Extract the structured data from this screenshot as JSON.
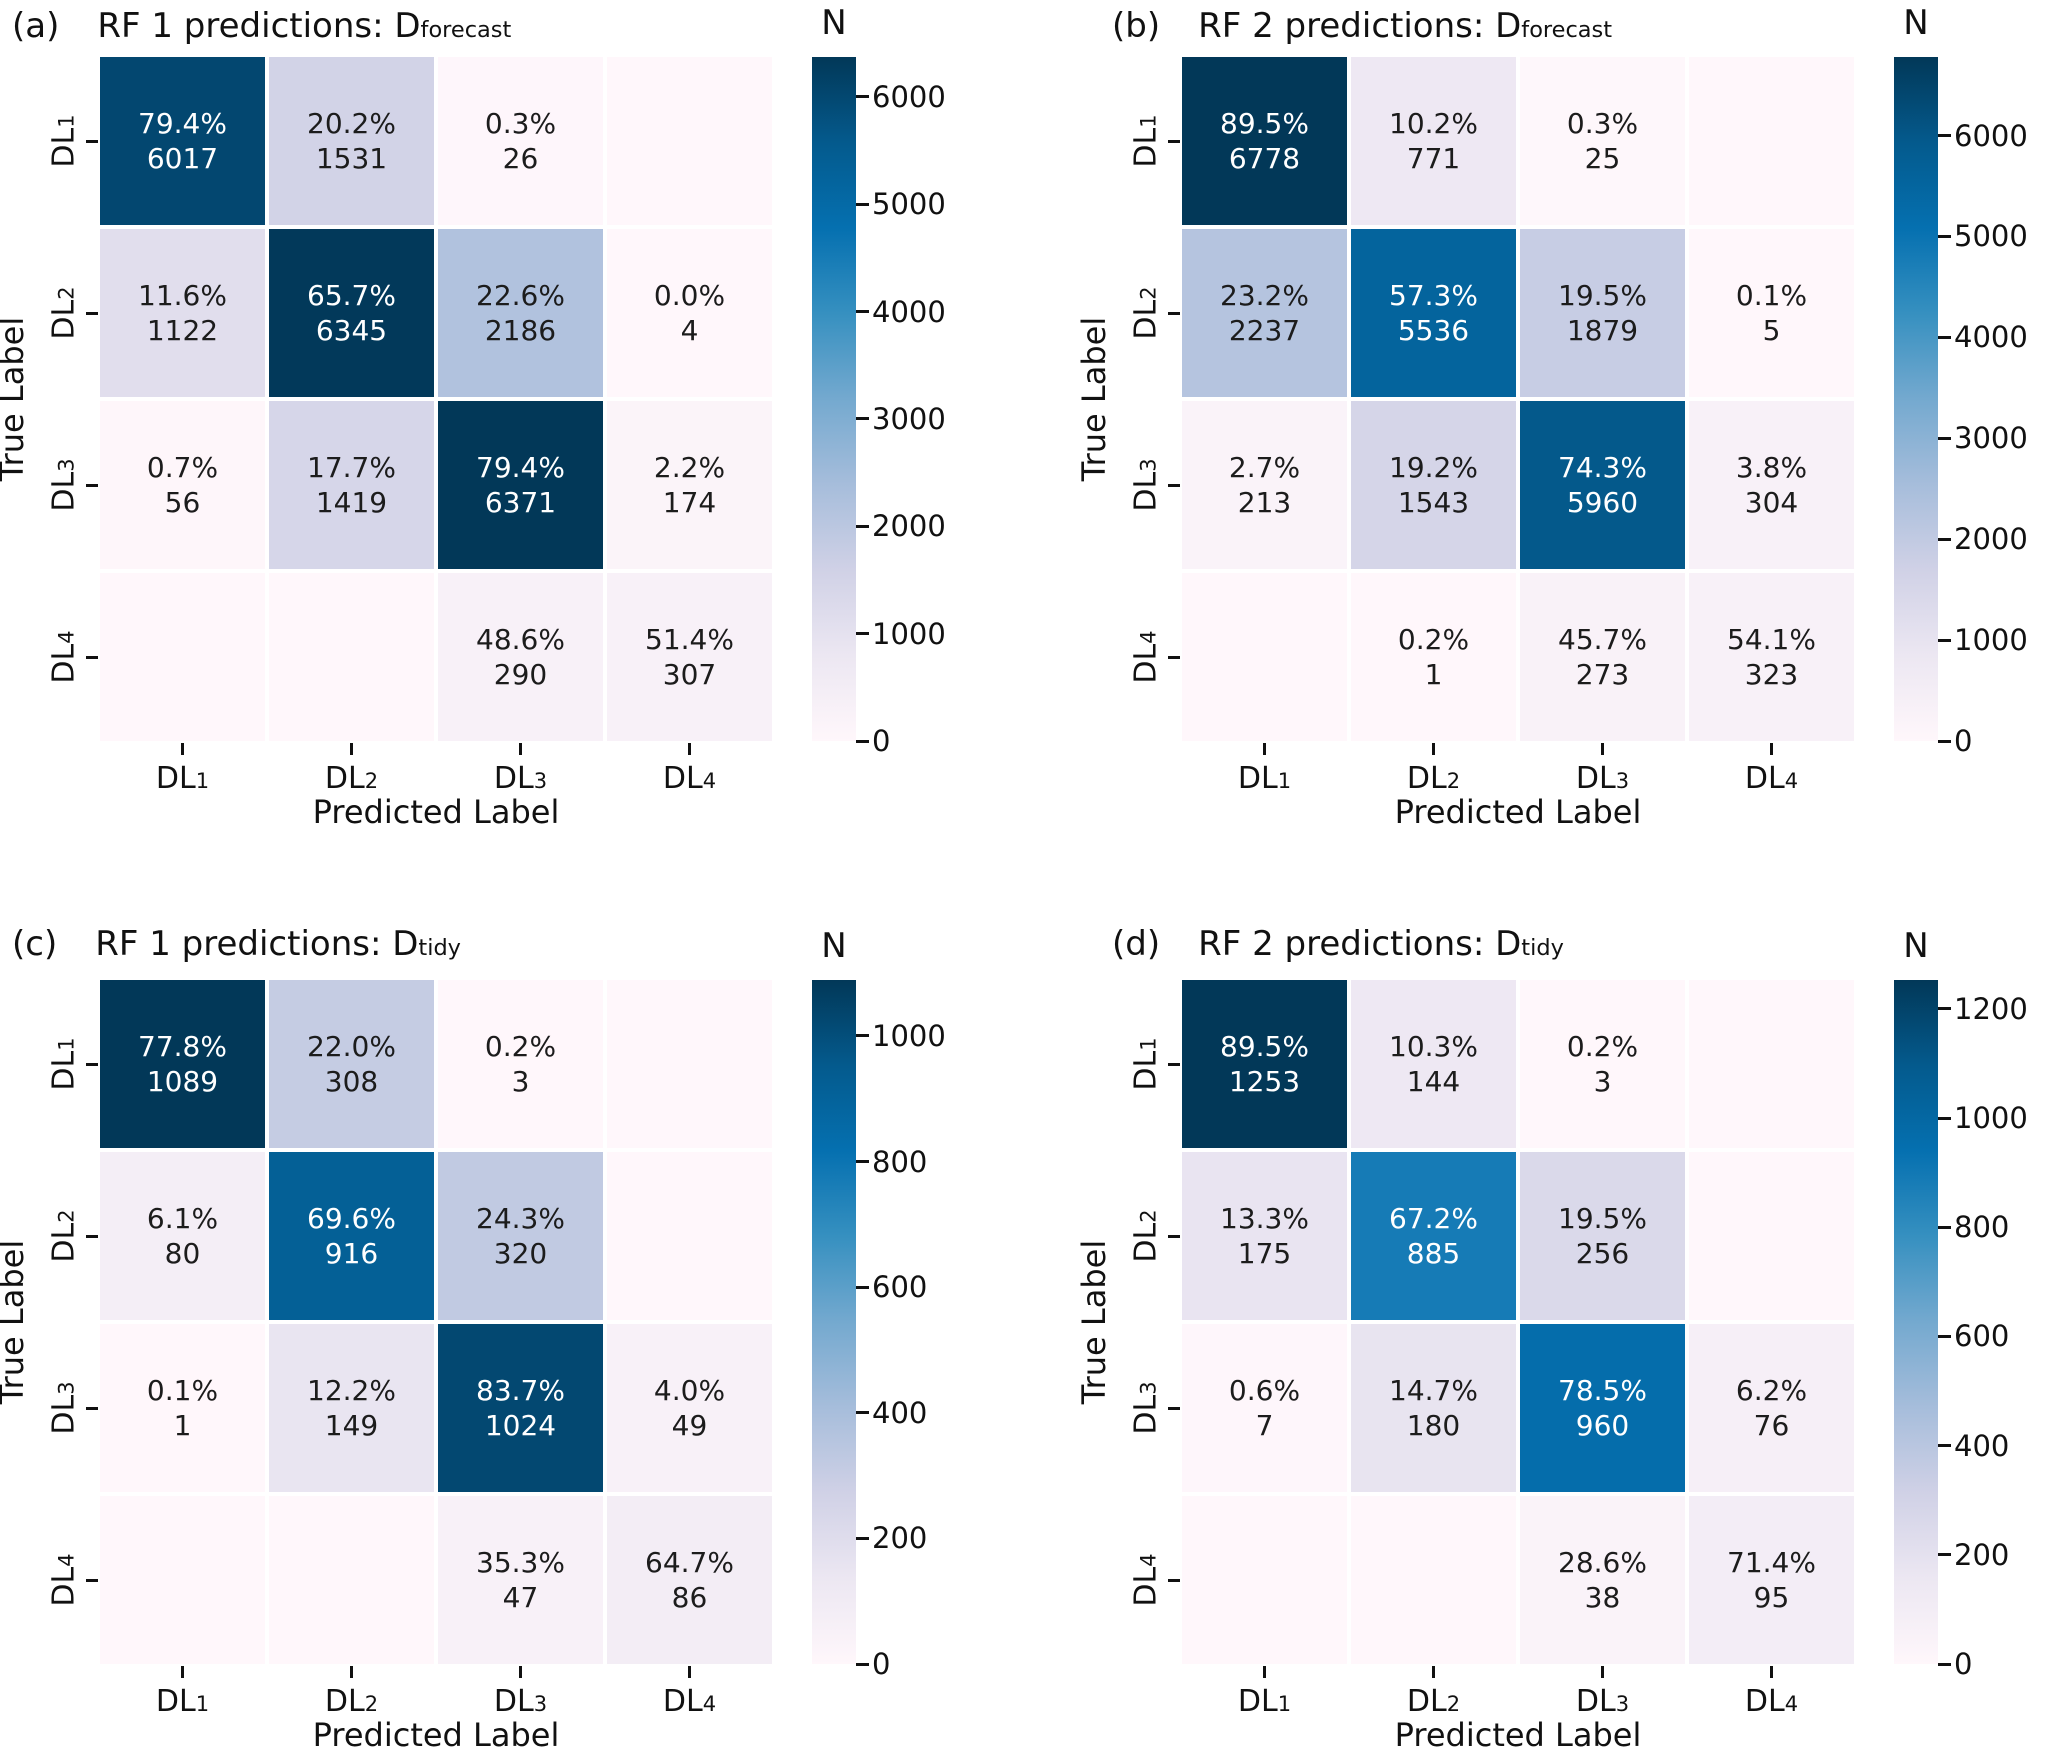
{
  "style": {
    "colormap_stops": [
      "#fff7fb",
      "#ece7f2",
      "#d0d1e6",
      "#a6bddb",
      "#74a9cf",
      "#3690c0",
      "#0570b0",
      "#045a8d",
      "#023858"
    ],
    "cell_text_dark": "#1c1c1c",
    "cell_text_light": "#ffffff",
    "axis_color": "#111111"
  },
  "chart_data": [
    {
      "type": "heatmap",
      "panel_tag": "(a)",
      "title_prefix": "RF 1 predictions: D",
      "title_subscript": "forecast",
      "xlabel": "Predicted Label",
      "ylabel": "True Label",
      "colorbar_label": "N",
      "x_categories": [
        "DL1",
        "DL2",
        "DL3",
        "DL4"
      ],
      "y_categories": [
        "DL1",
        "DL2",
        "DL3",
        "DL4"
      ],
      "vmin": 0,
      "vmax": 6371,
      "colorbar_ticks": [
        0,
        1000,
        2000,
        3000,
        4000,
        5000,
        6000
      ],
      "counts": [
        [
          6017,
          1531,
          26,
          null
        ],
        [
          1122,
          6345,
          2186,
          4
        ],
        [
          56,
          1419,
          6371,
          174
        ],
        [
          null,
          null,
          290,
          307
        ]
      ],
      "percents": [
        [
          "79.4%",
          "20.2%",
          "0.3%",
          null
        ],
        [
          "11.6%",
          "65.7%",
          "22.6%",
          "0.0%"
        ],
        [
          "0.7%",
          "17.7%",
          "79.4%",
          "2.2%"
        ],
        [
          null,
          null,
          "48.6%",
          "51.4%"
        ]
      ]
    },
    {
      "type": "heatmap",
      "panel_tag": "(b)",
      "title_prefix": "RF 2 predictions: D",
      "title_subscript": "forecast",
      "xlabel": "Predicted Label",
      "ylabel": "True Label",
      "colorbar_label": "N",
      "x_categories": [
        "DL1",
        "DL2",
        "DL3",
        "DL4"
      ],
      "y_categories": [
        "DL1",
        "DL2",
        "DL3",
        "DL4"
      ],
      "vmin": 0,
      "vmax": 6778,
      "colorbar_ticks": [
        0,
        1000,
        2000,
        3000,
        4000,
        5000,
        6000
      ],
      "counts": [
        [
          6778,
          771,
          25,
          null
        ],
        [
          2237,
          5536,
          1879,
          5
        ],
        [
          213,
          1543,
          5960,
          304
        ],
        [
          null,
          1,
          273,
          323
        ]
      ],
      "percents": [
        [
          "89.5%",
          "10.2%",
          "0.3%",
          null
        ],
        [
          "23.2%",
          "57.3%",
          "19.5%",
          "0.1%"
        ],
        [
          "2.7%",
          "19.2%",
          "74.3%",
          "3.8%"
        ],
        [
          null,
          "0.2%",
          "45.7%",
          "54.1%"
        ]
      ]
    },
    {
      "type": "heatmap",
      "panel_tag": "(c)",
      "title_prefix": "RF 1 predictions: D",
      "title_subscript": "tidy",
      "xlabel": "Predicted Label",
      "ylabel": "True Label",
      "colorbar_label": "N",
      "x_categories": [
        "DL1",
        "DL2",
        "DL3",
        "DL4"
      ],
      "y_categories": [
        "DL1",
        "DL2",
        "DL3",
        "DL4"
      ],
      "vmin": 0,
      "vmax": 1089,
      "colorbar_ticks": [
        0,
        200,
        400,
        600,
        800,
        1000
      ],
      "counts": [
        [
          1089,
          308,
          3,
          null
        ],
        [
          80,
          916,
          320,
          null
        ],
        [
          1,
          149,
          1024,
          49
        ],
        [
          null,
          null,
          47,
          86
        ]
      ],
      "percents": [
        [
          "77.8%",
          "22.0%",
          "0.2%",
          null
        ],
        [
          "6.1%",
          "69.6%",
          "24.3%",
          null
        ],
        [
          "0.1%",
          "12.2%",
          "83.7%",
          "4.0%"
        ],
        [
          null,
          null,
          "35.3%",
          "64.7%"
        ]
      ]
    },
    {
      "type": "heatmap",
      "panel_tag": "(d)",
      "title_prefix": "RF 2 predictions: D",
      "title_subscript": "tidy",
      "xlabel": "Predicted Label",
      "ylabel": "True Label",
      "colorbar_label": "N",
      "x_categories": [
        "DL1",
        "DL2",
        "DL3",
        "DL4"
      ],
      "y_categories": [
        "DL1",
        "DL2",
        "DL3",
        "DL4"
      ],
      "vmin": 0,
      "vmax": 1253,
      "colorbar_ticks": [
        0,
        200,
        400,
        600,
        800,
        1000,
        1200
      ],
      "counts": [
        [
          1253,
          144,
          3,
          null
        ],
        [
          175,
          885,
          256,
          null
        ],
        [
          7,
          180,
          960,
          76
        ],
        [
          null,
          null,
          38,
          95
        ]
      ],
      "percents": [
        [
          "89.5%",
          "10.3%",
          "0.2%",
          null
        ],
        [
          "13.3%",
          "67.2%",
          "19.5%",
          null
        ],
        [
          "0.6%",
          "14.7%",
          "78.5%",
          "6.2%"
        ],
        [
          null,
          null,
          "28.6%",
          "71.4%"
        ]
      ]
    }
  ]
}
